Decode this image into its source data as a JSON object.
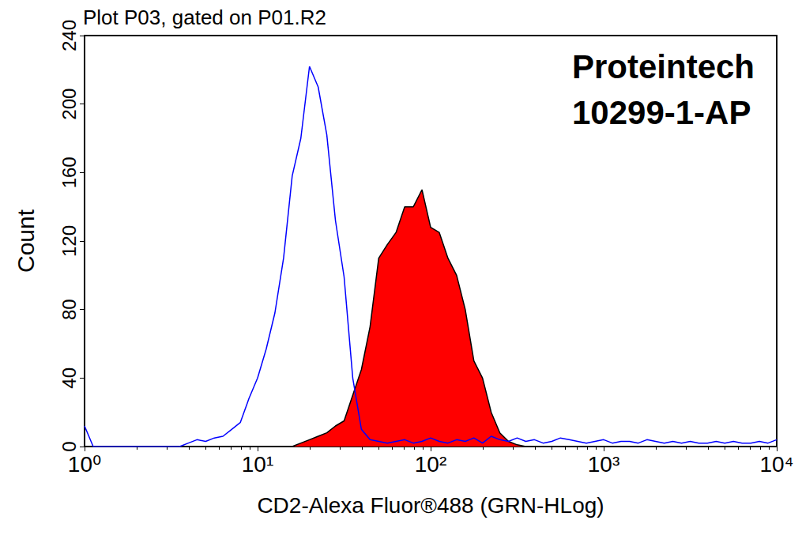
{
  "chart_data": {
    "type": "line",
    "title": "Plot P03, gated on P01.R2",
    "annotations": [
      "Proteintech",
      "10299-1-AP"
    ],
    "x_label": "CD2-Alexa Fluor®488 (GRN-HLog)",
    "y_label": "Count",
    "log": "x",
    "grid": false,
    "x": [
      1,
      1.122,
      1.259,
      1.413,
      1.585,
      1.778,
      1.995,
      2.239,
      2.512,
      2.818,
      3.162,
      3.548,
      3.981,
      4.467,
      5.012,
      5.623,
      6.31,
      7.079,
      7.943,
      8.913,
      10,
      11.22,
      12.59,
      14.13,
      15.85,
      17.78,
      19.95,
      22.39,
      25.12,
      28.18,
      31.62,
      35.48,
      39.81,
      44.67,
      50.12,
      56.23,
      63.1,
      70.79,
      79.43,
      89.13,
      100,
      112.2,
      125.9,
      141.3,
      158.5,
      177.8,
      199.5,
      223.9,
      251.2,
      281.8,
      316.2,
      354.8,
      398.1,
      446.7,
      501.2,
      562.3,
      631,
      707.9,
      794.3,
      891.3,
      1000,
      1122,
      1259,
      1413,
      1585,
      1778,
      1995,
      2239,
      2512,
      2818,
      3162,
      3548,
      3981,
      4467,
      5012,
      5623,
      6310,
      7079,
      7943,
      8913,
      10000
    ],
    "series": [
      {
        "type": "line",
        "color": "#0000ff",
        "values": [
          12,
          0,
          0,
          0,
          0,
          0,
          0,
          0,
          0,
          0,
          0,
          0,
          2,
          4,
          3,
          5,
          6,
          10,
          14,
          28,
          40,
          57,
          78,
          110,
          158,
          180,
          222,
          210,
          182,
          132,
          99,
          40,
          10,
          4,
          3,
          2,
          3,
          4,
          2,
          3,
          5,
          3,
          2,
          4,
          3,
          5,
          2,
          6,
          4,
          3,
          5,
          3,
          4,
          2,
          3,
          5,
          4,
          3,
          2,
          3,
          4,
          2,
          3,
          3,
          2,
          4,
          3,
          2,
          3,
          2,
          3,
          2,
          2,
          3,
          2,
          3,
          2,
          2,
          3,
          2,
          4
        ]
      },
      {
        "type": "area",
        "color": "#ff0000",
        "values": [
          0,
          0,
          0,
          0,
          0,
          0,
          0,
          0,
          0,
          0,
          0,
          0,
          0,
          0,
          0,
          0,
          0,
          0,
          0,
          0,
          0,
          0,
          0,
          0,
          0,
          2,
          4,
          6,
          8,
          12,
          15,
          30,
          45,
          70,
          110,
          118,
          125,
          140,
          140,
          150,
          128,
          125,
          110,
          100,
          80,
          50,
          40,
          20,
          8,
          3,
          1,
          0,
          0,
          0,
          0,
          0,
          0,
          0,
          0,
          0,
          0,
          0,
          0,
          0,
          0,
          0,
          0,
          0,
          0,
          0,
          0,
          0,
          0,
          0,
          0,
          0,
          0,
          0,
          0,
          0,
          0
        ]
      }
    ],
    "xlim": [
      1,
      10000
    ],
    "xticks": [
      {
        "value": 1,
        "label": "10⁰"
      },
      {
        "value": 10,
        "label": "10¹"
      },
      {
        "value": 100,
        "label": "10²"
      },
      {
        "value": 1000,
        "label": "10³"
      },
      {
        "value": 10000,
        "label": "10⁴"
      }
    ],
    "ylim": [
      0,
      240
    ],
    "yticks": [
      0,
      40,
      80,
      120,
      160,
      200,
      240
    ]
  }
}
